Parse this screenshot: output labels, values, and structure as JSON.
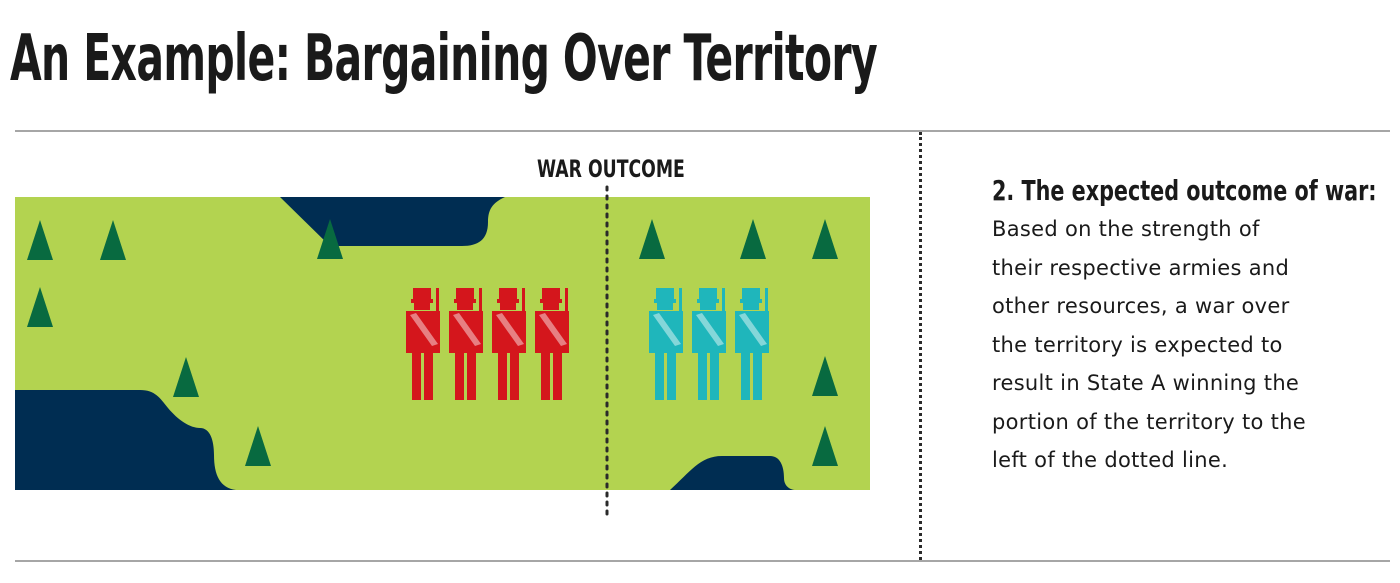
{
  "title": "An Example: Bargaining Over Territory",
  "diagram": {
    "war_outcome_label": "WAR OUTCOME",
    "colors": {
      "land": "#b3d350",
      "water": "#002d52",
      "tree": "#086a40",
      "state_a_soldier": "#d4161c",
      "state_b_soldier": "#1fb6bb",
      "divider": "#2a2a2a"
    },
    "icons": {
      "tree": "tree-icon",
      "soldier": "soldier-icon"
    },
    "state_a_soldier_count": 4,
    "state_b_soldier_count": 3
  },
  "explanation": {
    "heading": "2. The expected outcome of war:",
    "lines": [
      "Based on the strength of",
      "their respective armies and",
      "other resources, a war over",
      "the territory is expected to",
      "result in State A winning the",
      "portion of the territory to the",
      "left of the dotted line."
    ]
  }
}
